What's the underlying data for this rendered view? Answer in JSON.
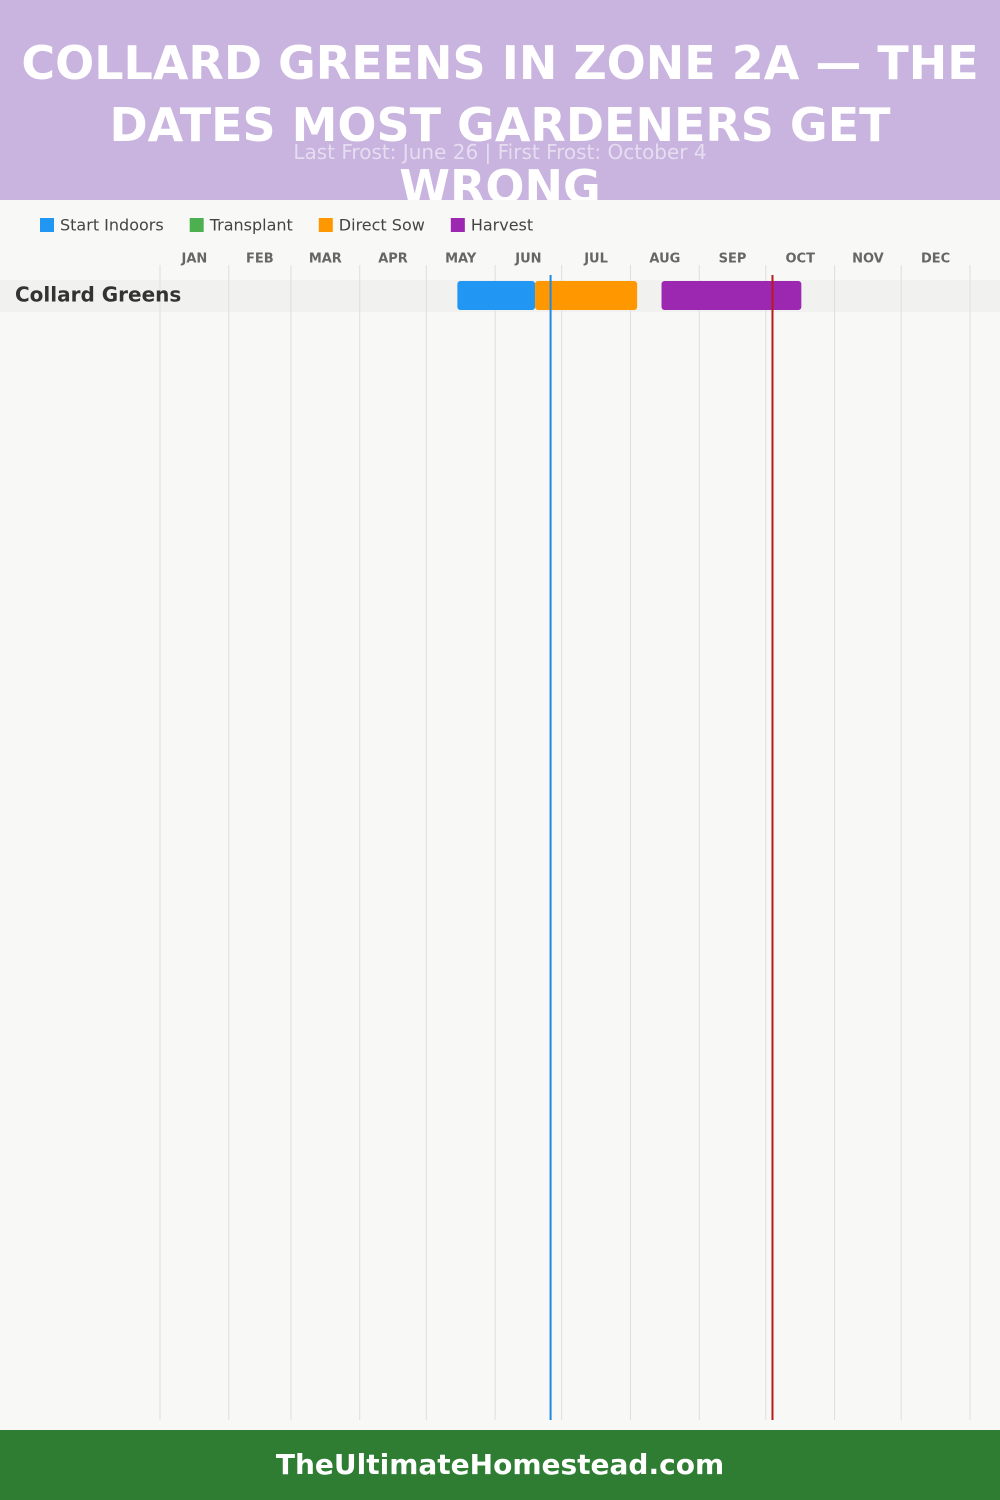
{
  "chart_data": {
    "type": "gantt",
    "title": "COLLARD GREENS IN ZONE 2A — THE DATES MOST GARDENERS GET WRONG",
    "subtitle": "Last Frost: June 26 | First Frost: October 4",
    "categories": [
      "Collard Greens"
    ],
    "xlim": [
      1,
      366
    ],
    "xticks": [
      {
        "value": 1,
        "label": "JAN"
      },
      {
        "value": 32,
        "label": "FEB"
      },
      {
        "value": 60,
        "label": "MAR"
      },
      {
        "value": 91,
        "label": "APR"
      },
      {
        "value": 121,
        "label": "MAY"
      },
      {
        "value": 152,
        "label": "JUN"
      },
      {
        "value": 182,
        "label": "JUL"
      },
      {
        "value": 213,
        "label": "AUG"
      },
      {
        "value": 244,
        "label": "SEP"
      },
      {
        "value": 274,
        "label": "OCT"
      },
      {
        "value": 305,
        "label": "NOV"
      },
      {
        "value": 335,
        "label": "DEC"
      }
    ],
    "series": [
      {
        "name": "Start Indoors",
        "color": "#2196f3",
        "values": [
          [
            135,
            170
          ]
        ]
      },
      {
        "name": "Transplant",
        "color": "#4caf50",
        "values": [
          null
        ]
      },
      {
        "name": "Direct Sow",
        "color": "#ff9800",
        "values": [
          [
            170,
            216
          ]
        ]
      },
      {
        "name": "Harvest",
        "color": "#9c27b0",
        "values": [
          [
            227,
            290
          ]
        ]
      }
    ],
    "frost_lines": [
      {
        "value": 177,
        "color": "#1e88e5"
      },
      {
        "value": 277,
        "color": "#b71c1c"
      }
    ],
    "grid": true,
    "footer": "TheUltimateHomestead.com"
  }
}
